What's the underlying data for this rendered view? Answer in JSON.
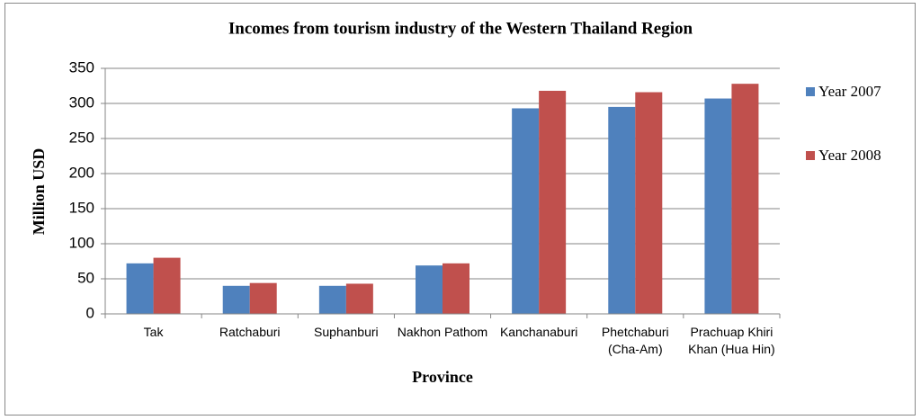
{
  "chart_data": {
    "type": "bar",
    "title": "Incomes from tourism industry of the Western Thailand Region",
    "x_label": "Province",
    "y_label": "Million USD",
    "categories": [
      "Tak",
      "Ratchaburi",
      "Suphanburi",
      "Nakhon Pathom",
      "Kanchanaburi",
      "Phetchaburi (Cha-Am)",
      "Prachuap Khiri Khan (Hua Hin)"
    ],
    "series": [
      {
        "name": "Year 2007",
        "color": "#4f81bd",
        "values": [
          72,
          40,
          40,
          69,
          293,
          295,
          307
        ]
      },
      {
        "name": "Year 2008",
        "color": "#c0504d",
        "values": [
          80,
          44,
          43,
          72,
          318,
          316,
          328
        ]
      }
    ],
    "ylim": [
      0,
      350
    ],
    "yticks": [
      0,
      50,
      100,
      150,
      200,
      250,
      300,
      350
    ],
    "grid": true,
    "legend": "right"
  }
}
